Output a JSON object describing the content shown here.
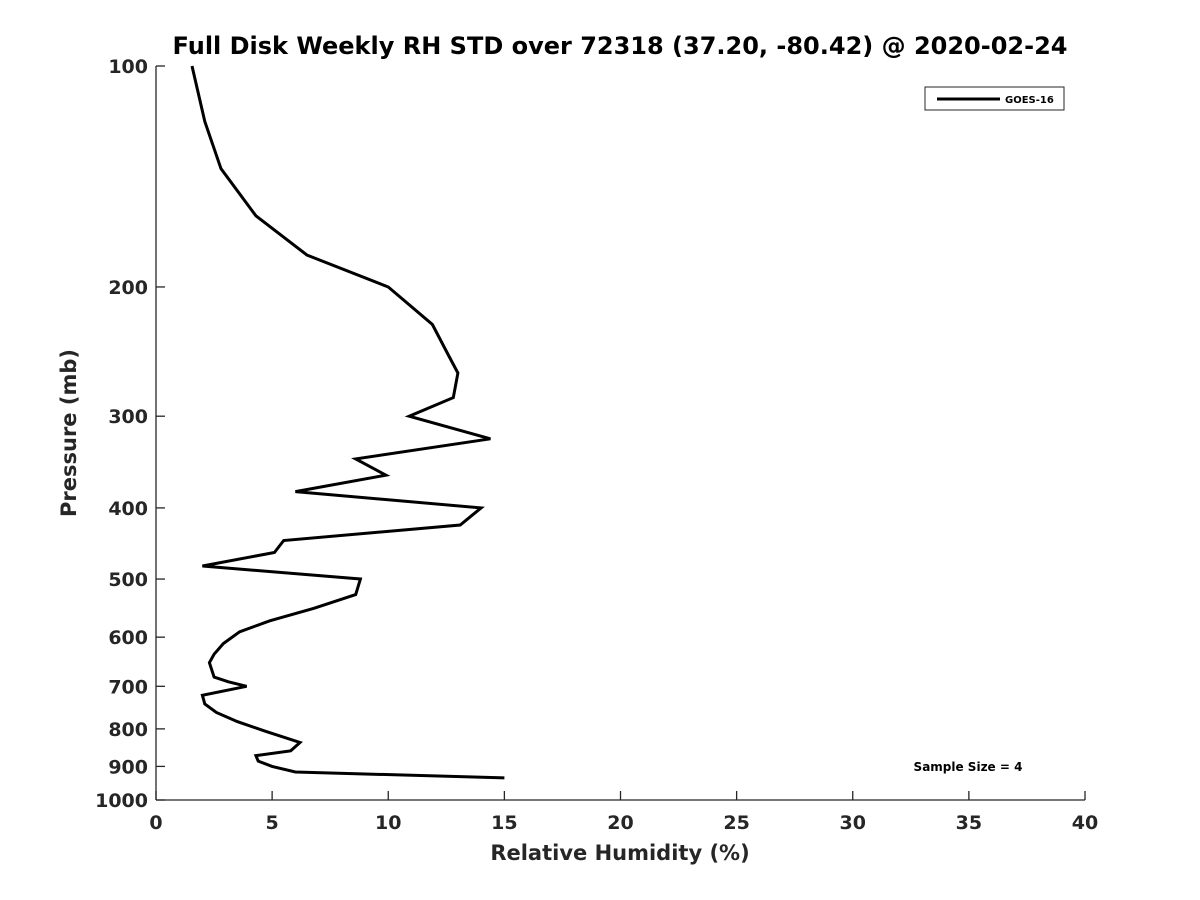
{
  "chart_data": {
    "type": "line",
    "title": "Full Disk Weekly RH STD over 72318 (37.20, -80.42) @ 2020-02-24",
    "xlabel": "Relative Humidity (%)",
    "ylabel": "Pressure (mb)",
    "xlim": [
      0,
      40
    ],
    "ylim": [
      100,
      1000
    ],
    "y_scale": "log",
    "y_reversed": true,
    "x_ticks": [
      "0",
      "5",
      "10",
      "15",
      "20",
      "25",
      "30",
      "35",
      "40"
    ],
    "y_ticks": [
      "100",
      "200",
      "300",
      "400",
      "500",
      "600",
      "700",
      "800",
      "900",
      "1000"
    ],
    "grid": false,
    "legend_position": "top-right",
    "annotation": "Sample Size = 4",
    "series": [
      {
        "name": "GOES-16",
        "color": "#000000",
        "x": [
          1.55,
          2.1,
          2.8,
          4.3,
          6.5,
          10.0,
          11.9,
          12.6,
          13.0,
          12.8,
          10.9,
          14.4,
          8.6,
          9.9,
          6.0,
          14.0,
          13.1,
          5.5,
          5.1,
          2.0,
          8.8,
          8.6,
          6.8,
          4.9,
          3.6,
          2.9,
          2.5,
          2.3,
          2.5,
          3.1,
          3.9,
          2.0,
          2.1,
          2.6,
          3.5,
          4.7,
          6.2,
          5.8,
          4.3,
          4.4,
          5.0,
          6.0,
          15.0
        ],
        "y": [
          100,
          119,
          138,
          160,
          181,
          200,
          225,
          248,
          262,
          283,
          300,
          322,
          343,
          361,
          380,
          400,
          422,
          443,
          460,
          480,
          500,
          525,
          548,
          570,
          590,
          612,
          633,
          650,
          680,
          690,
          700,
          720,
          740,
          760,
          782,
          806,
          835,
          857,
          870,
          885,
          900,
          916,
          933
        ]
      }
    ]
  }
}
